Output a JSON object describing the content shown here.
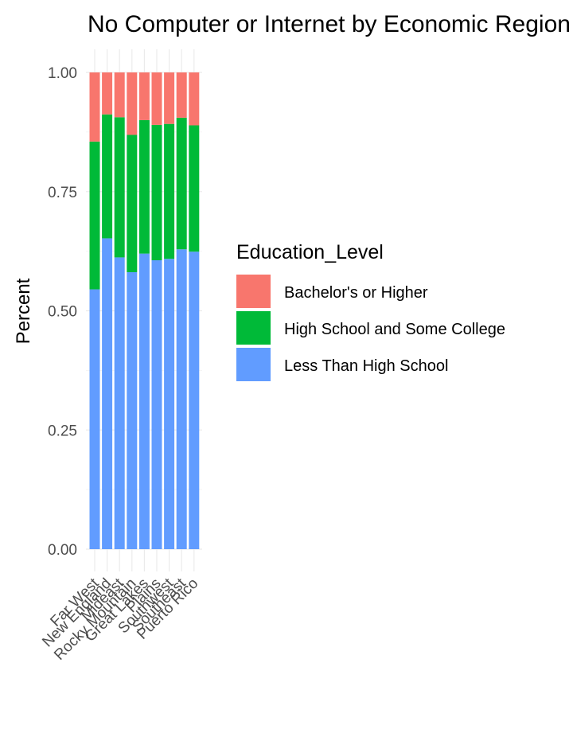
{
  "chart_data": {
    "type": "bar",
    "stacked": true,
    "title": "No Computer or Internet by Economic Region",
    "xlabel": "",
    "ylabel": "Percent",
    "ylim": [
      0,
      1
    ],
    "y_ticks": [
      "0.00",
      "0.25",
      "0.50",
      "0.75",
      "1.00"
    ],
    "categories": [
      "Far West",
      "New England",
      "Mideast",
      "Rocky Mountain",
      "Great Lakes",
      "Plains",
      "Southwest",
      "Southeast",
      "Puerto Rico"
    ],
    "legend_title": "Education_Level",
    "legend_position": "right",
    "grid": true,
    "series": [
      {
        "name": "Bachelor's or Higher",
        "color": "#F8766D",
        "values": [
          0.145,
          0.088,
          0.094,
          0.131,
          0.1,
          0.11,
          0.108,
          0.095,
          0.111
        ]
      },
      {
        "name": "High School and Some College",
        "color": "#00BA38",
        "values": [
          0.31,
          0.26,
          0.294,
          0.288,
          0.28,
          0.284,
          0.283,
          0.276,
          0.265
        ]
      },
      {
        "name": "Less Than High School",
        "color": "#619CFF",
        "values": [
          0.545,
          0.652,
          0.612,
          0.581,
          0.62,
          0.606,
          0.609,
          0.629,
          0.624
        ]
      }
    ]
  }
}
